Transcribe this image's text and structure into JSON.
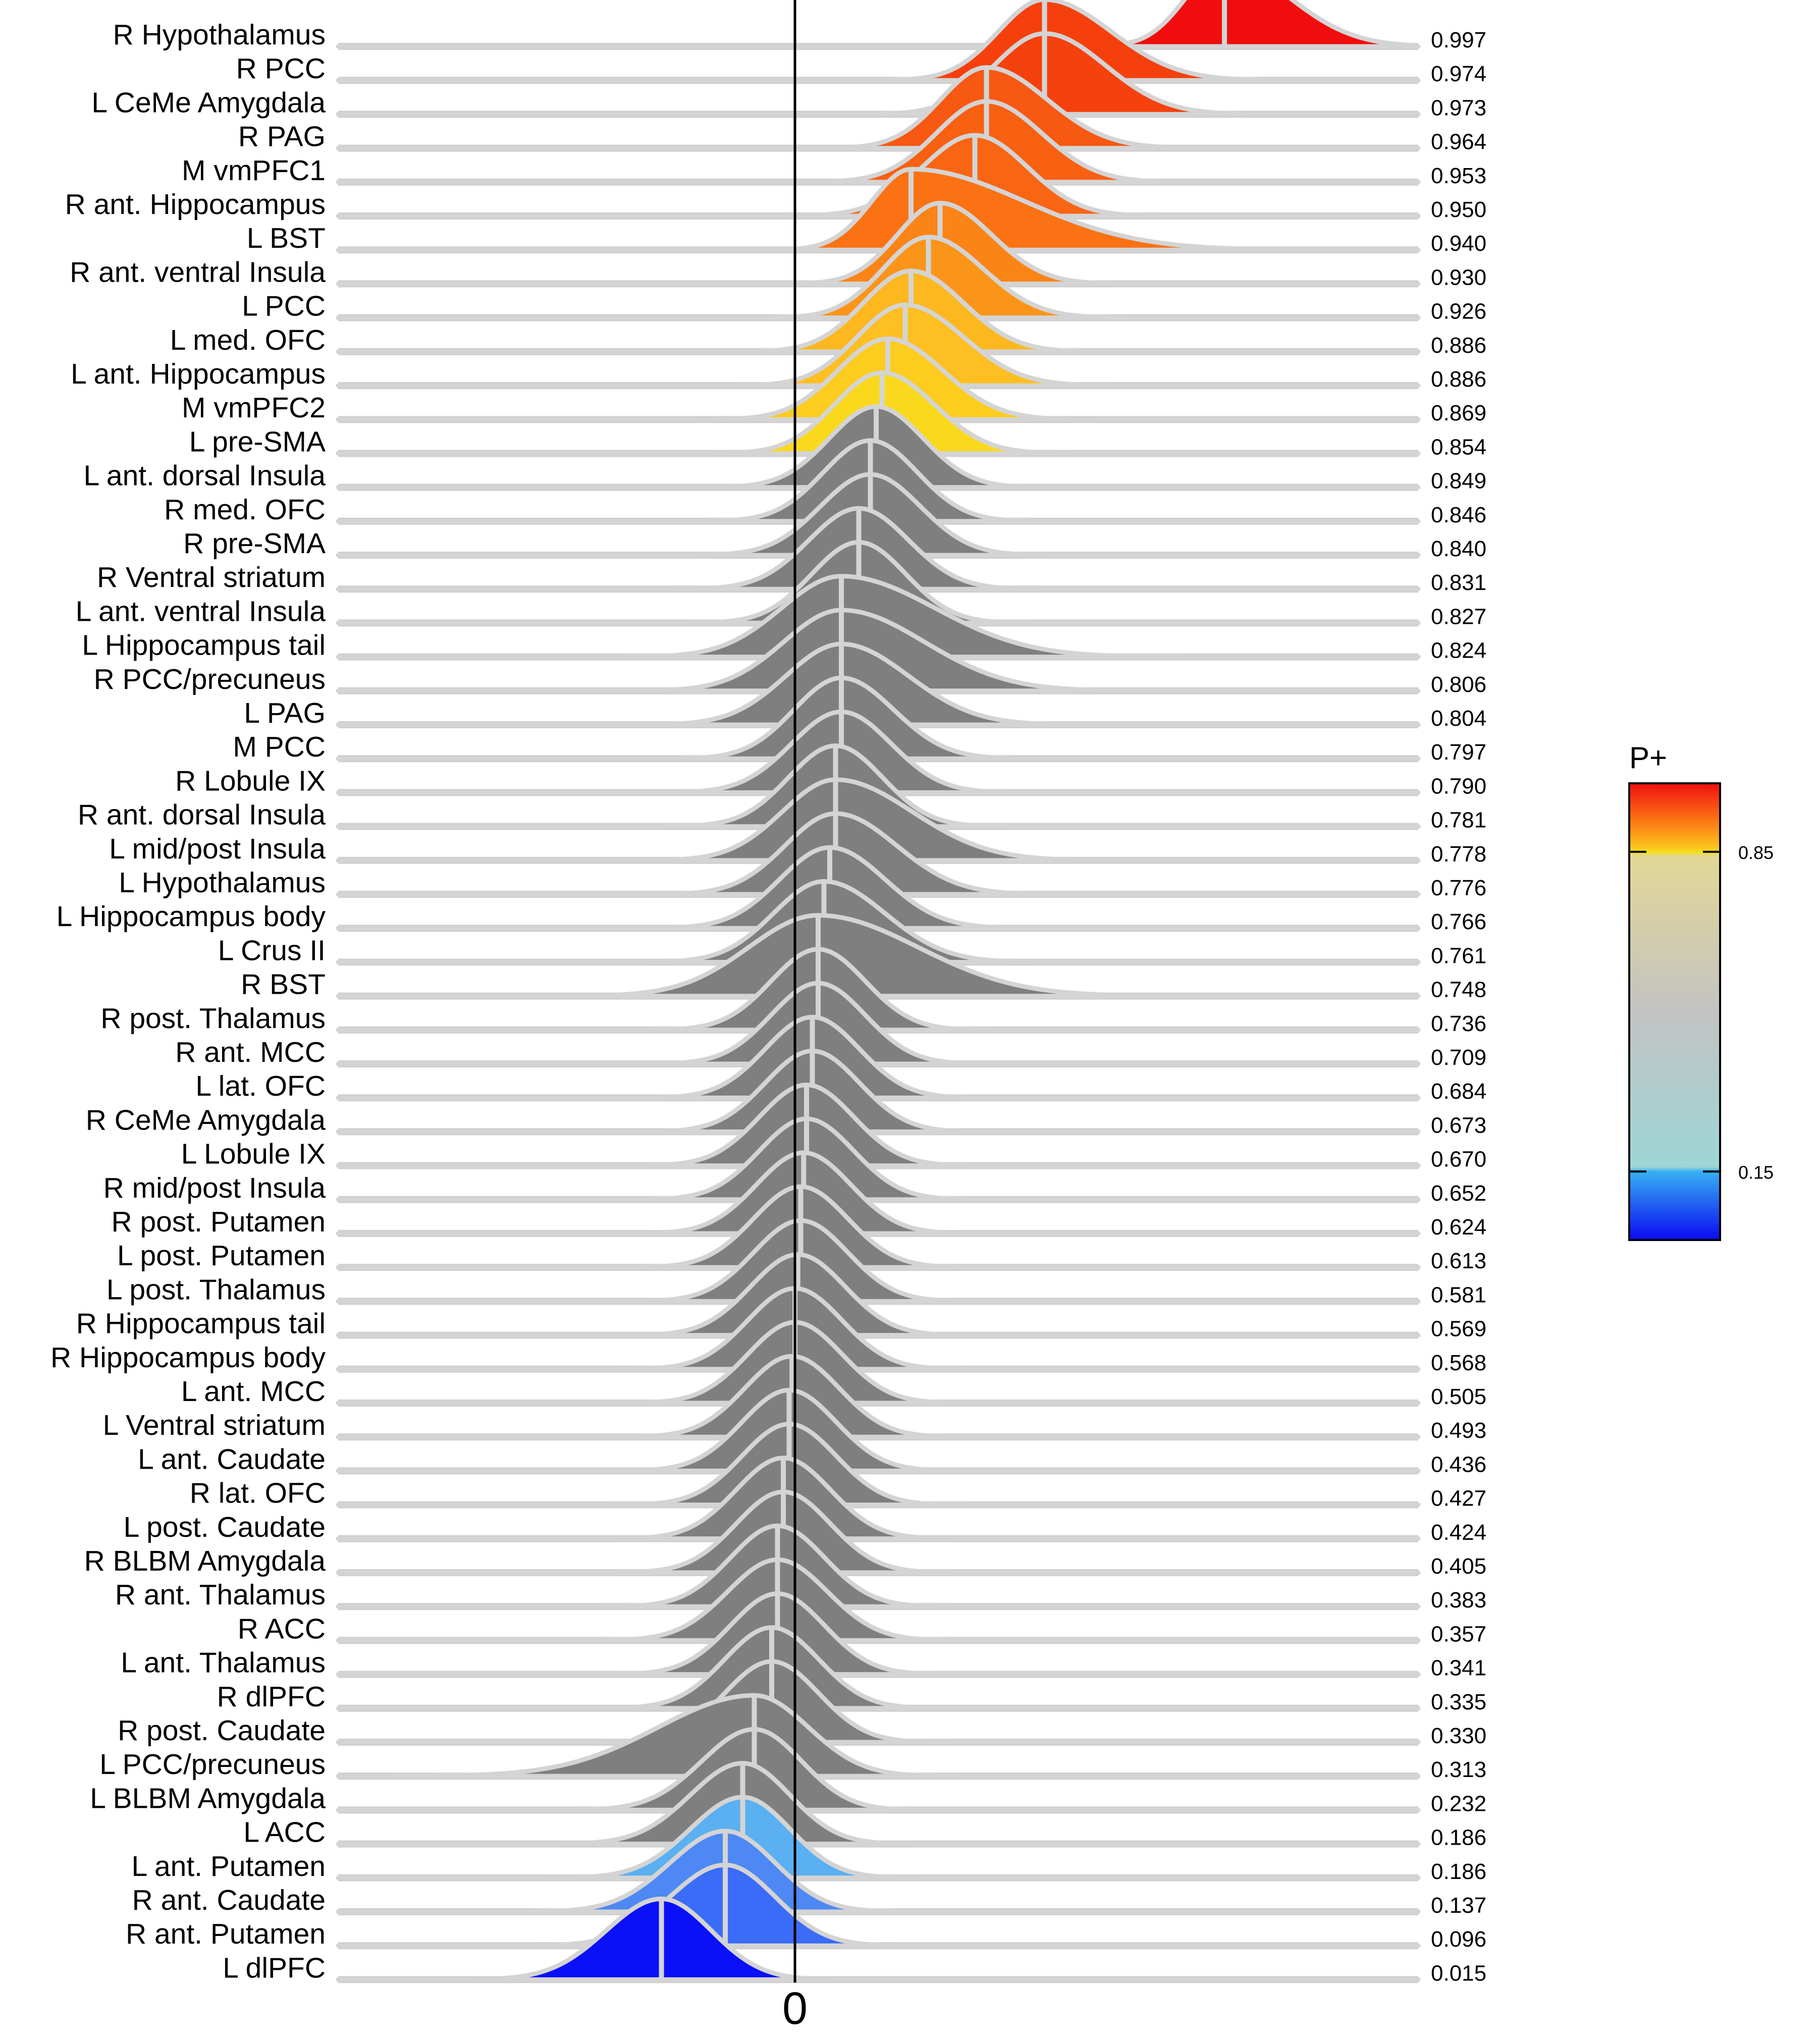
{
  "chart_data": {
    "type": "ridgeline",
    "title": "",
    "xlabel": "",
    "ylabel": "",
    "x_tick_labels": [
      "0"
    ],
    "x_reference_line": 0,
    "regions": [
      {
        "name": "R Hypothalamus",
        "p": "0.997",
        "peak": 0.74,
        "width": 0.18,
        "skew": 1.3,
        "color": "#f10d0d"
      },
      {
        "name": "R PCC",
        "p": "0.974",
        "peak": 0.43,
        "width": 0.2,
        "skew": 1.2,
        "color": "#f5400d"
      },
      {
        "name": "L CeMe Amygdala",
        "p": "0.973",
        "peak": 0.43,
        "width": 0.2,
        "skew": 1.1,
        "color": "#f5410d"
      },
      {
        "name": "R PAG",
        "p": "0.964",
        "peak": 0.33,
        "width": 0.19,
        "skew": 1.15,
        "color": "#f75812"
      },
      {
        "name": "M vmPFC1",
        "p": "0.953",
        "peak": 0.33,
        "width": 0.19,
        "skew": 1.05,
        "color": "#f86012"
      },
      {
        "name": "R ant. Hippocampus",
        "p": "0.950",
        "peak": 0.31,
        "width": 0.19,
        "skew": 1.0,
        "color": "#f96513"
      },
      {
        "name": "L BST",
        "p": "0.940",
        "peak": 0.2,
        "width": 0.24,
        "skew": 1.7,
        "color": "#fa7214"
      },
      {
        "name": "R ant. ventral Insula",
        "p": "0.930",
        "peak": 0.25,
        "width": 0.17,
        "skew": 1.1,
        "color": "#fb8416"
      },
      {
        "name": "L PCC",
        "p": "0.926",
        "peak": 0.23,
        "width": 0.18,
        "skew": 1.1,
        "color": "#fb951a"
      },
      {
        "name": "L med. OFC",
        "p": "0.886",
        "peak": 0.2,
        "width": 0.18,
        "skew": 1.05,
        "color": "#fdb81f"
      },
      {
        "name": "L ant. Hippocampus",
        "p": "0.886",
        "peak": 0.19,
        "width": 0.19,
        "skew": 1.1,
        "color": "#fdbf21"
      },
      {
        "name": "M vmPFC2",
        "p": "0.869",
        "peak": 0.16,
        "width": 0.19,
        "skew": 1.05,
        "color": "#fccc1f"
      },
      {
        "name": "L pre-SMA",
        "p": "0.854",
        "peak": 0.15,
        "width": 0.18,
        "skew": 1.05,
        "color": "#fad91c"
      },
      {
        "name": "L ant. dorsal Insula",
        "p": "0.849",
        "peak": 0.14,
        "width": 0.17,
        "skew": 1.0,
        "color": "#7f7f7f"
      },
      {
        "name": "R med. OFC",
        "p": "0.846",
        "peak": 0.13,
        "width": 0.17,
        "skew": 1.0,
        "color": "#7f7f7f"
      },
      {
        "name": "R pre-SMA",
        "p": "0.840",
        "peak": 0.13,
        "width": 0.18,
        "skew": 1.0,
        "color": "#7f7f7f"
      },
      {
        "name": "R Ventral striatum",
        "p": "0.831",
        "peak": 0.11,
        "width": 0.18,
        "skew": 1.0,
        "color": "#7f7f7f"
      },
      {
        "name": "L ant. ventral Insula",
        "p": "0.827",
        "peak": 0.11,
        "width": 0.17,
        "skew": 1.0,
        "color": "#7f7f7f"
      },
      {
        "name": "L Hippocampus tail",
        "p": "0.824",
        "peak": 0.08,
        "width": 0.27,
        "skew": 1.25,
        "color": "#7f7f7f"
      },
      {
        "name": "R PCC/precuneus",
        "p": "0.806",
        "peak": 0.08,
        "width": 0.25,
        "skew": 1.2,
        "color": "#7f7f7f"
      },
      {
        "name": "L PAG",
        "p": "0.804",
        "peak": 0.08,
        "width": 0.22,
        "skew": 1.1,
        "color": "#7f7f7f"
      },
      {
        "name": "M PCC",
        "p": "0.797",
        "peak": 0.08,
        "width": 0.18,
        "skew": 1.05,
        "color": "#7f7f7f"
      },
      {
        "name": "R Lobule IX",
        "p": "0.790",
        "peak": 0.08,
        "width": 0.18,
        "skew": 1.0,
        "color": "#7f7f7f"
      },
      {
        "name": "R ant. dorsal Insula",
        "p": "0.781",
        "peak": 0.07,
        "width": 0.17,
        "skew": 1.0,
        "color": "#7f7f7f"
      },
      {
        "name": "L mid/post Insula",
        "p": "0.778",
        "peak": 0.07,
        "width": 0.23,
        "skew": 1.2,
        "color": "#7f7f7f"
      },
      {
        "name": "L Hypothalamus",
        "p": "0.776",
        "peak": 0.07,
        "width": 0.2,
        "skew": 1.1,
        "color": "#7f7f7f"
      },
      {
        "name": "L Hippocampus body",
        "p": "0.766",
        "peak": 0.06,
        "width": 0.19,
        "skew": 1.05,
        "color": "#7f7f7f"
      },
      {
        "name": "L Crus II",
        "p": "0.761",
        "peak": 0.05,
        "width": 0.2,
        "skew": 1.1,
        "color": "#7f7f7f"
      },
      {
        "name": "R BST",
        "p": "0.748",
        "peak": 0.04,
        "width": 0.3,
        "skew": 1.2,
        "color": "#7f7f7f"
      },
      {
        "name": "R post. Thalamus",
        "p": "0.736",
        "peak": 0.04,
        "width": 0.17,
        "skew": 1.0,
        "color": "#7f7f7f"
      },
      {
        "name": "R ant. MCC",
        "p": "0.709",
        "peak": 0.04,
        "width": 0.17,
        "skew": 1.0,
        "color": "#7f7f7f"
      },
      {
        "name": "L lat. OFC",
        "p": "0.684",
        "peak": 0.03,
        "width": 0.17,
        "skew": 1.0,
        "color": "#7f7f7f"
      },
      {
        "name": "R CeMe Amygdala",
        "p": "0.673",
        "peak": 0.03,
        "width": 0.17,
        "skew": 1.0,
        "color": "#7f7f7f"
      },
      {
        "name": "L Lobule IX",
        "p": "0.670",
        "peak": 0.02,
        "width": 0.17,
        "skew": 1.0,
        "color": "#7f7f7f"
      },
      {
        "name": "R mid/post Insula",
        "p": "0.652",
        "peak": 0.02,
        "width": 0.17,
        "skew": 1.0,
        "color": "#7f7f7f"
      },
      {
        "name": "R post. Putamen",
        "p": "0.624",
        "peak": 0.015,
        "width": 0.17,
        "skew": 1.0,
        "color": "#7f7f7f"
      },
      {
        "name": "L post. Putamen",
        "p": "0.613",
        "peak": 0.01,
        "width": 0.17,
        "skew": 1.0,
        "color": "#7f7f7f"
      },
      {
        "name": "L post. Thalamus",
        "p": "0.581",
        "peak": 0.01,
        "width": 0.17,
        "skew": 1.0,
        "color": "#7f7f7f"
      },
      {
        "name": "R Hippocampus tail",
        "p": "0.569",
        "peak": 0.005,
        "width": 0.17,
        "skew": 1.0,
        "color": "#7f7f7f"
      },
      {
        "name": "R Hippocampus body",
        "p": "0.568",
        "peak": 0.0,
        "width": 0.17,
        "skew": 1.0,
        "color": "#7f7f7f"
      },
      {
        "name": "L ant. MCC",
        "p": "0.505",
        "peak": 0.0,
        "width": 0.17,
        "skew": 1.0,
        "color": "#7f7f7f"
      },
      {
        "name": "L Ventral striatum",
        "p": "0.493",
        "peak": -0.005,
        "width": 0.17,
        "skew": 1.0,
        "color": "#7f7f7f"
      },
      {
        "name": "L ant. Caudate",
        "p": "0.436",
        "peak": -0.01,
        "width": 0.17,
        "skew": 1.0,
        "color": "#7f7f7f"
      },
      {
        "name": "R lat. OFC",
        "p": "0.427",
        "peak": -0.01,
        "width": 0.17,
        "skew": 1.0,
        "color": "#7f7f7f"
      },
      {
        "name": "L post. Caudate",
        "p": "0.424",
        "peak": -0.02,
        "width": 0.17,
        "skew": 1.0,
        "color": "#7f7f7f"
      },
      {
        "name": "R BLBM Amygdala",
        "p": "0.405",
        "peak": -0.02,
        "width": 0.17,
        "skew": 1.0,
        "color": "#7f7f7f"
      },
      {
        "name": "R ant. Thalamus",
        "p": "0.383",
        "peak": -0.03,
        "width": 0.17,
        "skew": 1.0,
        "color": "#7f7f7f"
      },
      {
        "name": "R ACC",
        "p": "0.357",
        "peak": -0.03,
        "width": 0.18,
        "skew": 1.0,
        "color": "#7f7f7f"
      },
      {
        "name": "L ant. Thalamus",
        "p": "0.341",
        "peak": -0.03,
        "width": 0.17,
        "skew": 1.0,
        "color": "#7f7f7f"
      },
      {
        "name": "R dlPFC",
        "p": "0.335",
        "peak": -0.04,
        "width": 0.17,
        "skew": 1.0,
        "color": "#7f7f7f"
      },
      {
        "name": "R post. Caudate",
        "p": "0.330",
        "peak": -0.04,
        "width": 0.17,
        "skew": 1.0,
        "color": "#7f7f7f"
      },
      {
        "name": "L PCC/precuneus",
        "p": "0.313",
        "peak": -0.07,
        "width": 0.26,
        "skew": 0.75,
        "color": "#7f7f7f"
      },
      {
        "name": "L BLBM Amygdala",
        "p": "0.232",
        "peak": -0.07,
        "width": 0.18,
        "skew": 0.95,
        "color": "#7f7f7f"
      },
      {
        "name": "L ACC",
        "p": "0.186",
        "peak": -0.09,
        "width": 0.18,
        "skew": 0.95,
        "color": "#7f7f7f"
      },
      {
        "name": "L ant. Putamen",
        "p": "0.186",
        "peak": -0.09,
        "width": 0.18,
        "skew": 0.95,
        "color": "#5ab0f0"
      },
      {
        "name": "R ant. Caudate",
        "p": "0.137",
        "peak": -0.12,
        "width": 0.19,
        "skew": 0.95,
        "color": "#4d88f4"
      },
      {
        "name": "R ant. Putamen",
        "p": "0.096",
        "peak": -0.12,
        "width": 0.19,
        "skew": 0.95,
        "color": "#3a6cf8"
      },
      {
        "name": "L dlPFC",
        "p": "0.015",
        "peak": -0.23,
        "width": 0.19,
        "skew": 0.95,
        "color": "#0a10f8"
      }
    ],
    "colorbar": {
      "title": "P+",
      "tick_labels": [
        "0.85",
        "0.15"
      ],
      "tick_values": [
        0.85,
        0.15
      ],
      "stops": [
        {
          "v": 1.0,
          "color": "#ef1010"
        },
        {
          "v": 0.93,
          "color": "#fb6613"
        },
        {
          "v": 0.86,
          "color": "#fcc31c"
        },
        {
          "v": 0.85,
          "color": "#f3e018"
        },
        {
          "v": 0.84,
          "color": "#e2d796"
        },
        {
          "v": 0.5,
          "color": "#c3c3c3"
        },
        {
          "v": 0.16,
          "color": "#9ed6d6"
        },
        {
          "v": 0.15,
          "color": "#36b0f2"
        },
        {
          "v": 0.0,
          "color": "#0a0af2"
        }
      ]
    },
    "baseline_color": "#cfcfcf",
    "outline_color": "#d4d4d4",
    "zero_line_color": "#000000"
  }
}
